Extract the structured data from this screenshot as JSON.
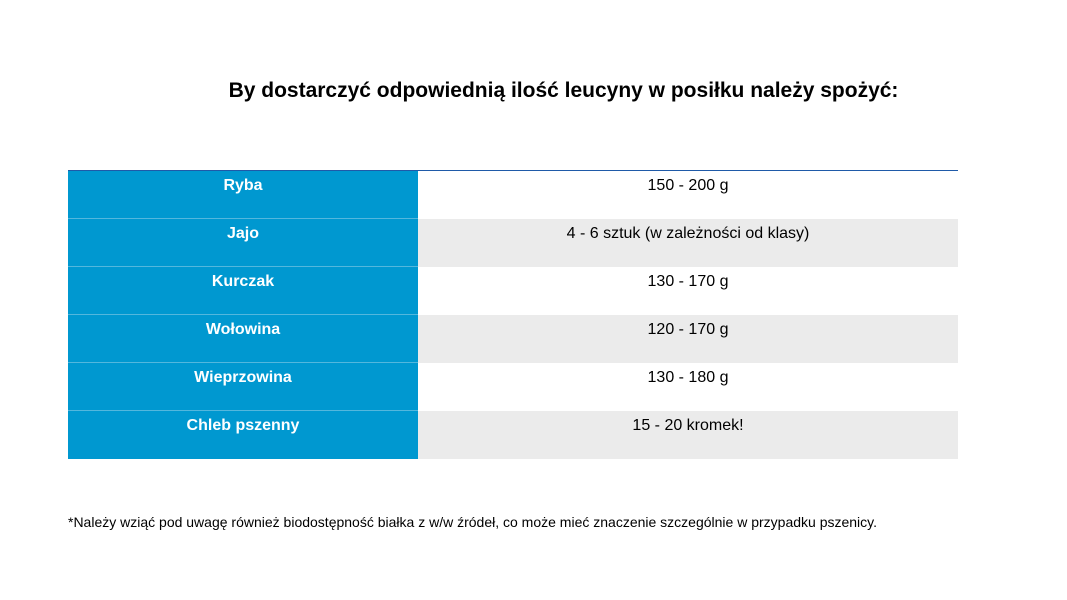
{
  "title": "By dostarczyć odpowiednią ilość leucyny w posiłku należy spożyć:",
  "table": {
    "rows": [
      {
        "food": "Ryba",
        "amount": "150 - 200 g"
      },
      {
        "food": "Jajo",
        "amount": "4 - 6 sztuk (w zależności od klasy)"
      },
      {
        "food": "Kurczak",
        "amount": "130 - 170 g"
      },
      {
        "food": "Wołowina",
        "amount": "120 - 170 g"
      },
      {
        "food": "Wieprzowina",
        "amount": "130 - 180 g"
      },
      {
        "food": "Chleb pszenny",
        "amount": "15 - 20 kromek!"
      }
    ]
  },
  "footnote": "*Należy wziąć pod uwagę również biodostępność białka z w/w źródeł, co może mieć znaczenie szczególnie w przypadku pszenicy.",
  "colors": {
    "header_column": "#0098d0",
    "row_alt": "#ebebeb",
    "top_rule": "#1f5aa8"
  }
}
